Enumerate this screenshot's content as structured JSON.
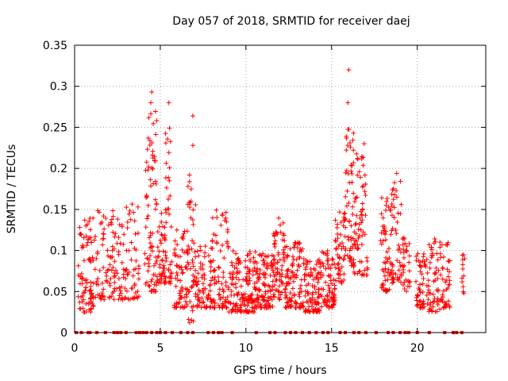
{
  "chart_data": {
    "type": "scatter",
    "title": "Day 057 of 2018, SRMTID for receiver daej",
    "xlabel": "GPS time / hours",
    "ylabel": "SRMTID / TECUs",
    "xlim": [
      0,
      24
    ],
    "ylim": [
      0,
      0.35
    ],
    "xticks": [
      0,
      5,
      10,
      15,
      20
    ],
    "xtick_labels": [
      "0",
      "5",
      "10",
      "15",
      "20"
    ],
    "yticks": [
      0,
      0.05,
      0.1,
      0.15,
      0.2,
      0.25,
      0.3,
      0.35
    ],
    "ytick_labels": [
      "0",
      "0.05",
      "0.1",
      "0.15",
      "0.2",
      "0.25",
      "0.3",
      "0.35"
    ],
    "grid": true,
    "marker": "+",
    "series_color": "#ff0000",
    "zero_marks_hours": [
      0.1,
      0.4,
      0.8,
      0.9,
      1.3,
      1.8,
      2.3,
      2.5,
      2.7,
      3.0,
      3.6,
      3.8,
      4.0,
      4.2,
      4.5,
      4.8,
      5.0,
      5.3,
      5.7,
      6.2,
      6.6,
      6.9,
      7.8,
      8.1,
      8.4,
      8.6,
      9.2,
      10.6,
      11.4,
      11.7,
      12.3,
      12.6,
      12.9,
      13.3,
      13.7,
      14.1,
      14.5,
      14.8,
      15.5,
      15.8,
      16.3,
      16.6,
      17.0,
      17.6,
      18.3,
      18.6,
      19.0,
      19.3,
      19.5,
      20.0,
      20.7,
      21.6,
      22.1,
      22.3,
      22.6
    ],
    "highlights": [
      {
        "x": 16.0,
        "y": 0.32
      },
      {
        "x": 4.5,
        "y": 0.293
      },
      {
        "x": 5.5,
        "y": 0.28
      },
      {
        "x": 6.9,
        "y": 0.264
      },
      {
        "x": 15.95,
        "y": 0.28
      },
      {
        "x": 4.45,
        "y": 0.28
      },
      {
        "x": 16.9,
        "y": 0.23
      },
      {
        "x": 18.8,
        "y": 0.194
      },
      {
        "x": 6.9,
        "y": 0.228
      }
    ],
    "groups": [
      {
        "x0": 0.2,
        "x1": 1.3,
        "ymin": 0.025,
        "ymax": 0.14,
        "n": 90
      },
      {
        "x0": 1.3,
        "x1": 2.6,
        "ymin": 0.04,
        "ymax": 0.15,
        "n": 80
      },
      {
        "x0": 2.6,
        "x1": 3.8,
        "ymin": 0.04,
        "ymax": 0.16,
        "n": 70
      },
      {
        "x0": 4.1,
        "x1": 4.8,
        "ymin": 0.05,
        "ymax": 0.27,
        "n": 80
      },
      {
        "x0": 4.8,
        "x1": 5.3,
        "ymin": 0.06,
        "ymax": 0.15,
        "n": 45
      },
      {
        "x0": 5.3,
        "x1": 5.7,
        "ymin": 0.06,
        "ymax": 0.27,
        "n": 40
      },
      {
        "x0": 5.8,
        "x1": 6.6,
        "ymin": 0.03,
        "ymax": 0.13,
        "n": 70
      },
      {
        "x0": 6.6,
        "x1": 7.1,
        "ymin": 0.012,
        "ymax": 0.2,
        "n": 50
      },
      {
        "x0": 7.1,
        "x1": 8.0,
        "ymin": 0.03,
        "ymax": 0.11,
        "n": 70
      },
      {
        "x0": 8.0,
        "x1": 9.0,
        "ymin": 0.03,
        "ymax": 0.15,
        "n": 80
      },
      {
        "x0": 9.0,
        "x1": 10.5,
        "ymin": 0.025,
        "ymax": 0.1,
        "n": 140
      },
      {
        "x0": 10.5,
        "x1": 11.6,
        "ymin": 0.03,
        "ymax": 0.1,
        "n": 110
      },
      {
        "x0": 11.6,
        "x1": 12.3,
        "ymin": 0.04,
        "ymax": 0.14,
        "n": 70
      },
      {
        "x0": 12.3,
        "x1": 13.4,
        "ymin": 0.03,
        "ymax": 0.11,
        "n": 100
      },
      {
        "x0": 13.4,
        "x1": 14.3,
        "ymin": 0.025,
        "ymax": 0.09,
        "n": 90
      },
      {
        "x0": 14.3,
        "x1": 15.2,
        "ymin": 0.03,
        "ymax": 0.1,
        "n": 80
      },
      {
        "x0": 15.2,
        "x1": 15.8,
        "ymin": 0.06,
        "ymax": 0.15,
        "n": 50
      },
      {
        "x0": 15.8,
        "x1": 16.3,
        "ymin": 0.08,
        "ymax": 0.26,
        "n": 60
      },
      {
        "x0": 16.3,
        "x1": 17.1,
        "ymin": 0.07,
        "ymax": 0.22,
        "n": 70
      },
      {
        "x0": 17.8,
        "x1": 18.5,
        "ymin": 0.05,
        "ymax": 0.165,
        "n": 60
      },
      {
        "x0": 18.5,
        "x1": 19.1,
        "ymin": 0.06,
        "ymax": 0.185,
        "n": 50
      },
      {
        "x0": 19.1,
        "x1": 19.6,
        "ymin": 0.05,
        "ymax": 0.12,
        "n": 30
      },
      {
        "x0": 19.9,
        "x1": 20.6,
        "ymin": 0.03,
        "ymax": 0.1,
        "n": 50
      },
      {
        "x0": 20.6,
        "x1": 21.4,
        "ymin": 0.025,
        "ymax": 0.115,
        "n": 60
      },
      {
        "x0": 21.4,
        "x1": 21.9,
        "ymin": 0.03,
        "ymax": 0.11,
        "n": 40
      },
      {
        "x0": 22.6,
        "x1": 22.8,
        "ymin": 0.045,
        "ymax": 0.095,
        "n": 12
      }
    ]
  }
}
